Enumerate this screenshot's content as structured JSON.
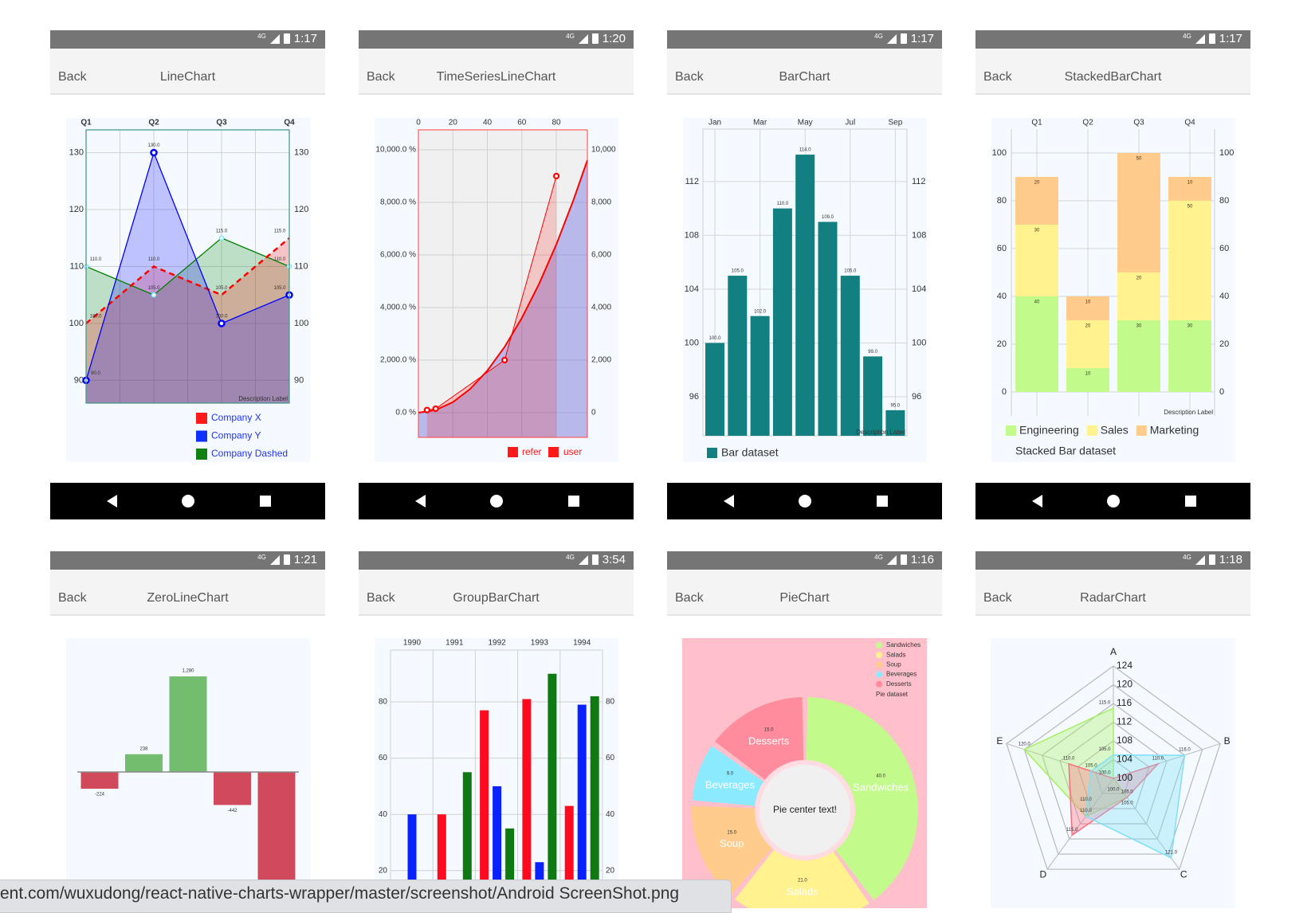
{
  "panels": [
    {
      "time": "1:17",
      "back": "Back",
      "title": "LineChart"
    },
    {
      "time": "1:20",
      "back": "Back",
      "title": "TimeSeriesLineChart"
    },
    {
      "time": "1:17",
      "back": "Back",
      "title": "BarChart"
    },
    {
      "time": "1:17",
      "back": "Back",
      "title": "StackedBarChart"
    },
    {
      "time": "1:21",
      "back": "Back",
      "title": "ZeroLineChart"
    },
    {
      "time": "3:54",
      "back": "Back",
      "title": "GroupBarChart"
    },
    {
      "time": "1:16",
      "back": "Back",
      "title": "PieChart"
    },
    {
      "time": "1:18",
      "back": "Back",
      "title": "RadarChart"
    }
  ],
  "status_network": "4G",
  "nav_icons": [
    "back-triangle-icon",
    "home-circle-icon",
    "recents-square-icon"
  ],
  "url_bar": "ent.com/wuxudong/react-native-charts-wrapper/master/screenshot/Android ScreenShot.png",
  "chart_data": [
    {
      "type": "line",
      "categories": [
        "Q1",
        "Q2",
        "Q3",
        "Q4"
      ],
      "ylim": [
        86,
        134
      ],
      "yticks": [
        "90",
        "100",
        "110",
        "120",
        "130"
      ],
      "grid": true,
      "description": "Description Label",
      "legend_position": "bottom-right",
      "series": [
        {
          "name": "Company X",
          "values": [
            100,
            110,
            105,
            115
          ],
          "color": "#ff0000",
          "dashed": true
        },
        {
          "name": "Company Y",
          "values": [
            90,
            130,
            100,
            105
          ],
          "color": "#0000ff"
        },
        {
          "name": "Company Dashed",
          "values": [
            110,
            105,
            115,
            110
          ],
          "color": "#008000"
        }
      ]
    },
    {
      "type": "line",
      "xlim": [
        0,
        98
      ],
      "ylim": [
        -940,
        10758
      ],
      "xticks": [
        "0",
        "20",
        "40",
        "60",
        "80"
      ],
      "yticks_left": [
        "0.0 %",
        "2,000.0 %",
        "4,000.0 %",
        "6,000.0 %",
        "8,000.0 %",
        "10,000.0 %"
      ],
      "yticks_right": [
        "0",
        "2,000",
        "4,000",
        "6,000",
        "8,000",
        "10,000"
      ],
      "legend_position": "bottom-right",
      "series": [
        {
          "name": "refer",
          "x": [
            5,
            10,
            50,
            80
          ],
          "y": [
            100,
            150,
            2000,
            9000
          ],
          "color": "#ff0000"
        },
        {
          "name": "user",
          "x": [
            0,
            10,
            20,
            30,
            40,
            50,
            60,
            70,
            80,
            90,
            98
          ],
          "y": [
            0,
            100,
            400,
            900,
            1600,
            2500,
            3600,
            4900,
            6400,
            8100,
            9604
          ],
          "color": "#ff0000"
        }
      ]
    },
    {
      "type": "bar",
      "categories": [
        "Jan",
        "Feb",
        "Mar",
        "Apr",
        "May",
        "Jun",
        "Jul",
        "Aug",
        "Sep"
      ],
      "tick_labels": [
        "Jan",
        "Mar",
        "May",
        "Jul",
        "Sep"
      ],
      "values": [
        100,
        105,
        102,
        110,
        114,
        109,
        105,
        99,
        95
      ],
      "ylim": [
        93.1,
        115.9
      ],
      "yticks": [
        "96",
        "100",
        "104",
        "108",
        "112"
      ],
      "color": "#128080",
      "legend": "Bar dataset",
      "description": "Description Label"
    },
    {
      "type": "bar",
      "stacked": true,
      "categories": [
        "Q1",
        "Q2",
        "Q3",
        "Q4"
      ],
      "ylim": [
        -10,
        110
      ],
      "yticks": [
        "0",
        "20",
        "40",
        "60",
        "80",
        "100"
      ],
      "series": [
        {
          "name": "Engineering",
          "values": [
            40,
            10,
            30,
            30
          ],
          "color": "#c3fa8c"
        },
        {
          "name": "Sales",
          "values": [
            30,
            20,
            20,
            50
          ],
          "color": "#fff28f"
        },
        {
          "name": "Marketing",
          "values": [
            20,
            10,
            50,
            10
          ],
          "color": "#ffcc8c"
        }
      ],
      "legend_title": "Stacked Bar dataset",
      "description": "Description Label"
    },
    {
      "type": "bar",
      "values": [
        -224,
        238,
        1280,
        -442,
        null
      ],
      "labels": [
        "-224",
        "238",
        "1,280",
        "-442",
        ""
      ],
      "positive_color": "#73bd6e",
      "negative_color": "#d04a5c"
    },
    {
      "type": "bar",
      "grouped": true,
      "categories": [
        "1990",
        "1991",
        "1992",
        "1993",
        "1994"
      ],
      "yticks": [
        "20",
        "40",
        "60",
        "80"
      ],
      "series": [
        {
          "values": [
            null,
            40,
            77,
            81,
            43
          ],
          "color": "#ff0a1e"
        },
        {
          "values": [
            40,
            null,
            50,
            23,
            79
          ],
          "color": "#0a22ff"
        },
        {
          "values": [
            null,
            55,
            35,
            90,
            82
          ],
          "color": "#0f7a12"
        }
      ]
    },
    {
      "type": "pie",
      "center_text": "Pie center text!",
      "legend_title": "Pie dataset",
      "legend_position": "top-right",
      "background": "#ffc0cb",
      "categories": [
        "Sandwiches",
        "Salads",
        "Soup",
        "Beverages",
        "Desserts"
      ],
      "values": [
        40,
        21,
        15,
        9,
        15
      ],
      "colors": [
        "#c3fa8c",
        "#fff28f",
        "#ffcc8c",
        "#8ceaff",
        "#ff8c9d"
      ]
    },
    {
      "type": "radar",
      "axes": [
        "A",
        "B",
        "C",
        "D",
        "E"
      ],
      "rlim": [
        100,
        124
      ],
      "rticks": [
        "100",
        "104",
        "108",
        "112",
        "116",
        "120",
        "124"
      ],
      "series": [
        {
          "values": [
            115,
            100,
            105,
            110,
            120
          ],
          "color": "#a6f060"
        },
        {
          "values": [
            100,
            110,
            105,
            115,
            110
          ],
          "color": "#ff6b80"
        },
        {
          "values": [
            105,
            116,
            121,
            110,
            105
          ],
          "color": "#7fe0f7"
        }
      ]
    }
  ]
}
